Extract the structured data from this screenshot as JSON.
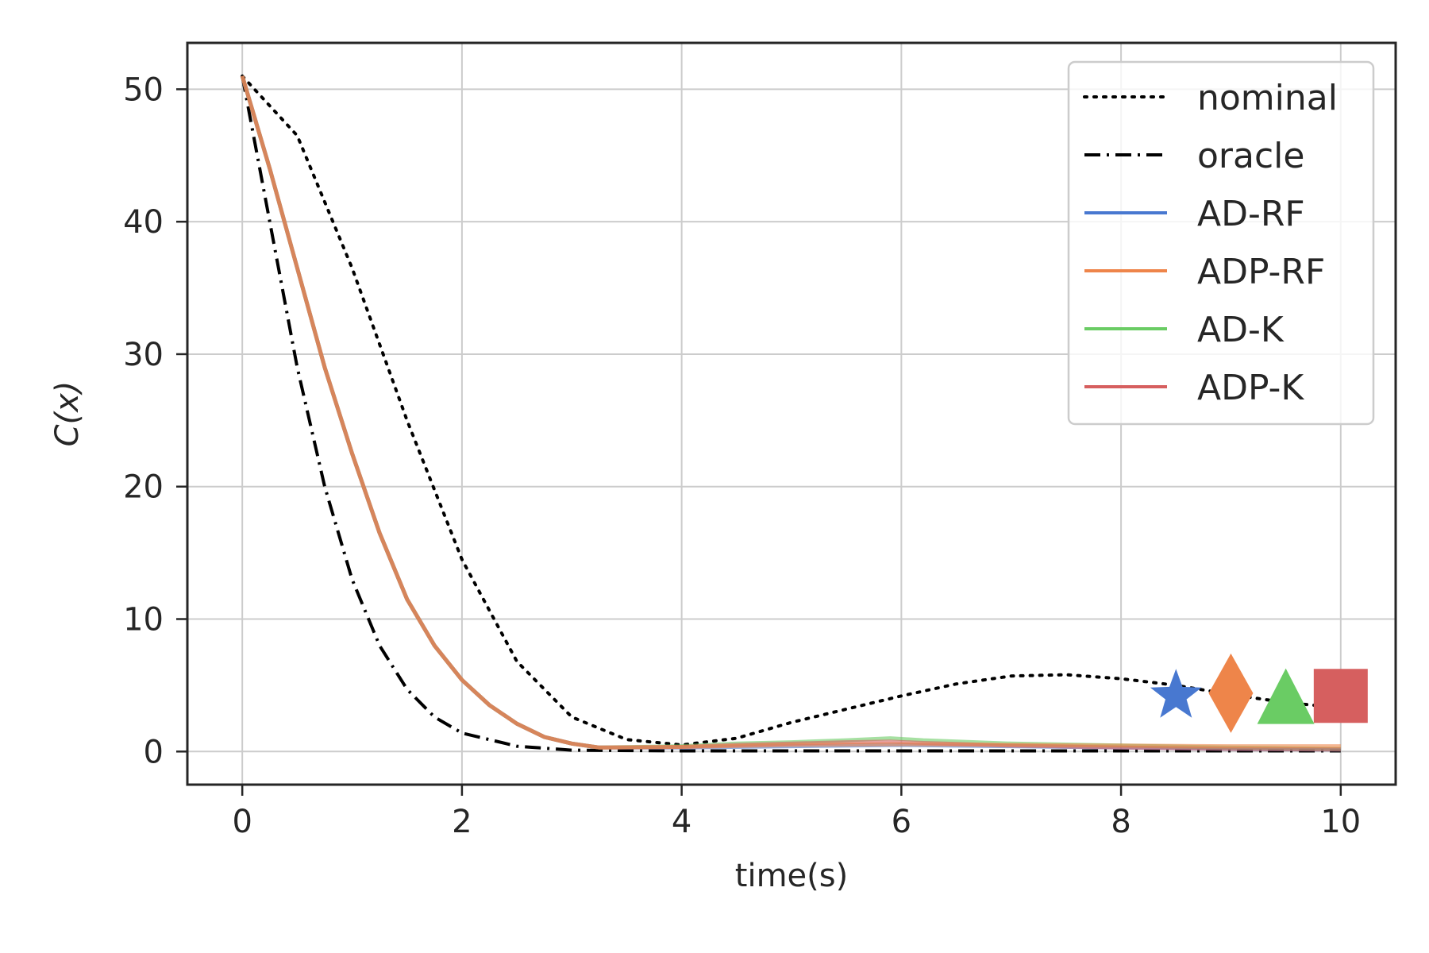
{
  "chart_data": {
    "type": "line",
    "title": "",
    "xlabel": "time(s)",
    "ylabel_prefix": "C(",
    "ylabel_var": "x",
    "ylabel_suffix": ")",
    "xlim": [
      -0.5,
      10.5
    ],
    "ylim": [
      -2.5,
      53.5
    ],
    "xticks": [
      0,
      2,
      4,
      6,
      8,
      10
    ],
    "yticks": [
      0,
      10,
      20,
      30,
      40,
      50
    ],
    "grid": true,
    "legend_position": "top-right",
    "series": [
      {
        "name": "nominal",
        "style": "dotted",
        "color": "#000000",
        "x": [
          0,
          0.5,
          1,
          1.5,
          2,
          2.5,
          3,
          3.5,
          4,
          4.5,
          5,
          5.5,
          6,
          6.5,
          7,
          7.5,
          8,
          8.5,
          9,
          9.5,
          10
        ],
        "y": [
          51,
          46.5,
          36.5,
          25,
          14.5,
          6.8,
          2.6,
          0.9,
          0.5,
          1.0,
          2.2,
          3.2,
          4.2,
          5.1,
          5.7,
          5.8,
          5.5,
          5.0,
          4.3,
          3.7,
          3.3
        ]
      },
      {
        "name": "oracle",
        "style": "dashdot",
        "color": "#000000",
        "x": [
          0,
          0.25,
          0.5,
          0.75,
          1,
          1.25,
          1.5,
          1.75,
          2,
          2.5,
          3,
          4,
          5,
          6,
          7,
          8,
          9,
          10
        ],
        "y": [
          51,
          40,
          29,
          20,
          13,
          8,
          4.7,
          2.6,
          1.4,
          0.4,
          0.1,
          0.05,
          0.05,
          0.05,
          0.05,
          0.05,
          0.05,
          0.05
        ]
      },
      {
        "name": "AD-RF",
        "style": "solid",
        "color": "#4878d0",
        "x": [
          0,
          0.25,
          0.5,
          0.75,
          1,
          1.25,
          1.5,
          1.75,
          2,
          2.25,
          2.5,
          2.75,
          3,
          3.25,
          4,
          5,
          6,
          7,
          8,
          9,
          10
        ],
        "y": [
          51,
          44,
          36.5,
          29,
          22.5,
          16.5,
          11.5,
          8,
          5.4,
          3.5,
          2.1,
          1.1,
          0.6,
          0.3,
          0.3,
          0.4,
          0.5,
          0.4,
          0.3,
          0.2,
          0.15
        ]
      },
      {
        "name": "ADP-RF",
        "style": "solid",
        "color": "#ee854a",
        "x": [
          0,
          0.25,
          0.5,
          0.75,
          1,
          1.25,
          1.5,
          1.75,
          2,
          2.25,
          2.5,
          2.75,
          3,
          3.25,
          4,
          5,
          6,
          7,
          8,
          9,
          10
        ],
        "y": [
          51,
          44,
          36.5,
          29,
          22.5,
          16.5,
          11.5,
          8,
          5.4,
          3.5,
          2.1,
          1.1,
          0.6,
          0.3,
          0.35,
          0.5,
          0.55,
          0.5,
          0.45,
          0.4,
          0.4
        ]
      },
      {
        "name": "AD-K",
        "style": "solid",
        "color": "#6acc64",
        "x": [
          0,
          0.25,
          0.5,
          0.75,
          1,
          1.25,
          1.5,
          1.75,
          2,
          2.25,
          2.5,
          2.75,
          3,
          3.25,
          4,
          4.5,
          5,
          5.5,
          5.9,
          6.2,
          7,
          8,
          9,
          10
        ],
        "y": [
          51,
          44,
          36.5,
          29,
          22.5,
          16.5,
          11.5,
          8,
          5.4,
          3.5,
          2.1,
          1.1,
          0.6,
          0.3,
          0.4,
          0.6,
          0.7,
          0.85,
          1.0,
          0.85,
          0.6,
          0.45,
          0.3,
          0.2
        ]
      },
      {
        "name": "ADP-K",
        "style": "solid",
        "color": "#d65f5f",
        "x": [
          0,
          0.25,
          0.5,
          0.75,
          1,
          1.25,
          1.5,
          1.75,
          2,
          2.25,
          2.5,
          2.75,
          3,
          3.25,
          4,
          4.5,
          5,
          5.5,
          5.9,
          6.2,
          7,
          8,
          9,
          10
        ],
        "y": [
          51,
          44,
          36.5,
          29,
          22.5,
          16.5,
          11.5,
          8,
          5.4,
          3.5,
          2.1,
          1.1,
          0.6,
          0.3,
          0.35,
          0.5,
          0.6,
          0.7,
          0.75,
          0.65,
          0.45,
          0.3,
          0.2,
          0.15
        ]
      }
    ],
    "markers": [
      {
        "series": "AD-RF",
        "shape": "star",
        "x": 8.5,
        "y": 4.2,
        "color": "#4878d0"
      },
      {
        "series": "ADP-RF",
        "shape": "diamond",
        "x": 9.0,
        "y": 4.4,
        "color": "#ee854a"
      },
      {
        "series": "AD-K",
        "shape": "triangle",
        "x": 9.5,
        "y": 4.0,
        "color": "#6acc64"
      },
      {
        "series": "ADP-K",
        "shape": "square",
        "x": 10.0,
        "y": 4.2,
        "color": "#d65f5f"
      }
    ]
  }
}
